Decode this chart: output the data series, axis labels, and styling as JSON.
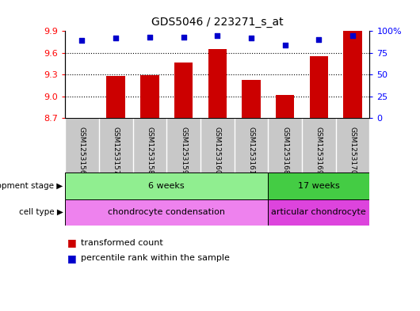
{
  "title": "GDS5046 / 223271_s_at",
  "samples": [
    "GSM1253156",
    "GSM1253157",
    "GSM1253158",
    "GSM1253159",
    "GSM1253160",
    "GSM1253161",
    "GSM1253168",
    "GSM1253169",
    "GSM1253170"
  ],
  "bar_values": [
    8.7,
    9.28,
    9.29,
    9.47,
    9.65,
    9.23,
    9.02,
    9.55,
    9.9
  ],
  "percentile_values": [
    89,
    92,
    93,
    93,
    95,
    92,
    84,
    90,
    95
  ],
  "ylim": [
    8.7,
    9.9
  ],
  "yticks_left": [
    8.7,
    9.0,
    9.3,
    9.6,
    9.9
  ],
  "yticks_right": [
    0,
    25,
    50,
    75,
    100
  ],
  "bar_color": "#cc0000",
  "dot_color": "#0000cc",
  "bar_bottom": 8.7,
  "dev_stage_groups": [
    {
      "label": "6 weeks",
      "start": 0,
      "end": 5,
      "color": "#90ee90"
    },
    {
      "label": "17 weeks",
      "start": 6,
      "end": 8,
      "color": "#44cc44"
    }
  ],
  "cell_type_groups": [
    {
      "label": "chondrocyte condensation",
      "start": 0,
      "end": 5,
      "color": "#ee82ee"
    },
    {
      "label": "articular chondrocyte",
      "start": 6,
      "end": 8,
      "color": "#dd44dd"
    }
  ],
  "legend_bar_label": "transformed count",
  "legend_dot_label": "percentile rank within the sample",
  "dev_stage_label": "development stage",
  "cell_type_label": "cell type",
  "plot_bg_color": "#ffffff",
  "sample_bg_color": "#c8c8c8"
}
